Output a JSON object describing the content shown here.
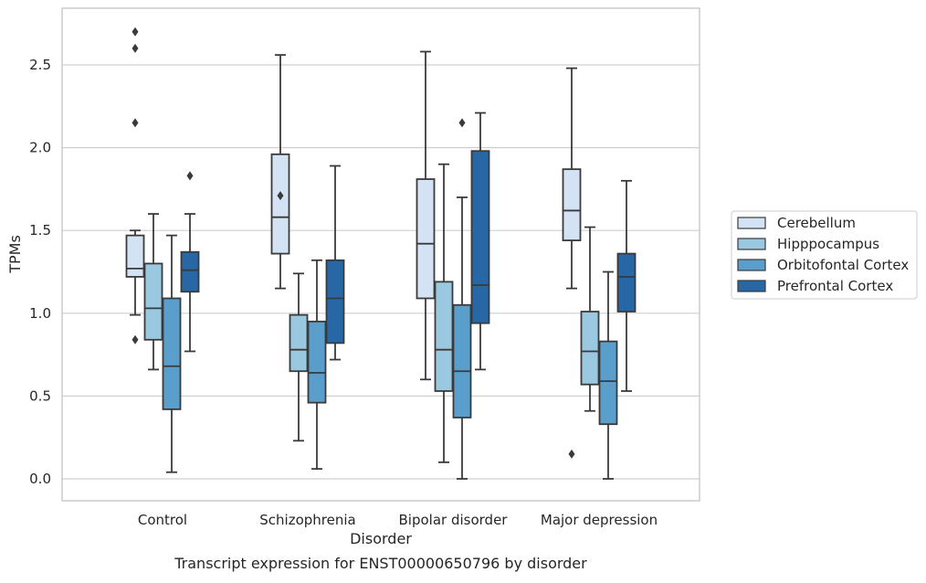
{
  "chart_data": {
    "type": "box",
    "title": "Transcript expression for ENST00000650796 by disorder",
    "xlabel": "Disorder",
    "ylabel": "TPMs",
    "ylim": [
      -0.13,
      2.85
    ],
    "yticks": [
      0.0,
      0.5,
      1.0,
      1.5,
      2.0,
      2.5
    ],
    "ytick_labels": [
      "0.0",
      "0.5",
      "1.0",
      "1.5",
      "2.0",
      "2.5"
    ],
    "grid": true,
    "legend_position": "right, outside",
    "categories": [
      "Control",
      "Schizophrenia",
      "Bipolar disorder",
      "Major depression"
    ],
    "series": [
      {
        "name": "Cerebellum",
        "color": "#d3e3f3",
        "boxes": [
          {
            "whislo": 0.99,
            "q1": 1.22,
            "med": 1.27,
            "q3": 1.47,
            "whishi": 1.5,
            "fliers": [
              0.84,
              2.15,
              2.6,
              2.7
            ]
          },
          {
            "whislo": 1.15,
            "q1": 1.36,
            "med": 1.58,
            "q3": 1.96,
            "whishi": 2.56,
            "fliers": [
              1.71
            ]
          },
          {
            "whislo": 0.6,
            "q1": 1.09,
            "med": 1.42,
            "q3": 1.81,
            "whishi": 2.58,
            "fliers": []
          },
          {
            "whislo": 1.15,
            "q1": 1.44,
            "med": 1.62,
            "q3": 1.87,
            "whishi": 2.48,
            "fliers": [
              0.15
            ]
          }
        ]
      },
      {
        "name": "Hipppocampus",
        "color": "#9ac8e0",
        "boxes": [
          {
            "whislo": 0.66,
            "q1": 0.84,
            "med": 1.03,
            "q3": 1.3,
            "whishi": 1.6,
            "fliers": []
          },
          {
            "whislo": 0.23,
            "q1": 0.65,
            "med": 0.78,
            "q3": 0.99,
            "whishi": 1.24,
            "fliers": []
          },
          {
            "whislo": 0.1,
            "q1": 0.53,
            "med": 0.78,
            "q3": 1.19,
            "whishi": 1.9,
            "fliers": []
          },
          {
            "whislo": 0.41,
            "q1": 0.57,
            "med": 0.77,
            "q3": 1.01,
            "whishi": 1.52,
            "fliers": []
          }
        ]
      },
      {
        "name": "Orbitofontal Cortex",
        "color": "#5a9ecc",
        "boxes": [
          {
            "whislo": 0.04,
            "q1": 0.42,
            "med": 0.68,
            "q3": 1.09,
            "whishi": 1.47,
            "fliers": []
          },
          {
            "whislo": 0.06,
            "q1": 0.46,
            "med": 0.64,
            "q3": 0.95,
            "whishi": 1.32,
            "fliers": []
          },
          {
            "whislo": 0.0,
            "q1": 0.37,
            "med": 0.65,
            "q3": 1.05,
            "whishi": 1.7,
            "fliers": [
              2.15
            ]
          },
          {
            "whislo": 0.0,
            "q1": 0.33,
            "med": 0.59,
            "q3": 0.83,
            "whishi": 1.25,
            "fliers": []
          }
        ]
      },
      {
        "name": "Prefrontal Cortex",
        "color": "#2767a6",
        "boxes": [
          {
            "whislo": 0.77,
            "q1": 1.13,
            "med": 1.26,
            "q3": 1.37,
            "whishi": 1.6,
            "fliers": [
              1.83
            ]
          },
          {
            "whislo": 0.72,
            "q1": 0.82,
            "med": 1.09,
            "q3": 1.32,
            "whishi": 1.89,
            "fliers": []
          },
          {
            "whislo": 0.66,
            "q1": 0.94,
            "med": 1.17,
            "q3": 1.98,
            "whishi": 2.21,
            "fliers": []
          },
          {
            "whislo": 0.53,
            "q1": 1.01,
            "med": 1.22,
            "q3": 1.36,
            "whishi": 1.8,
            "fliers": []
          }
        ]
      }
    ]
  }
}
